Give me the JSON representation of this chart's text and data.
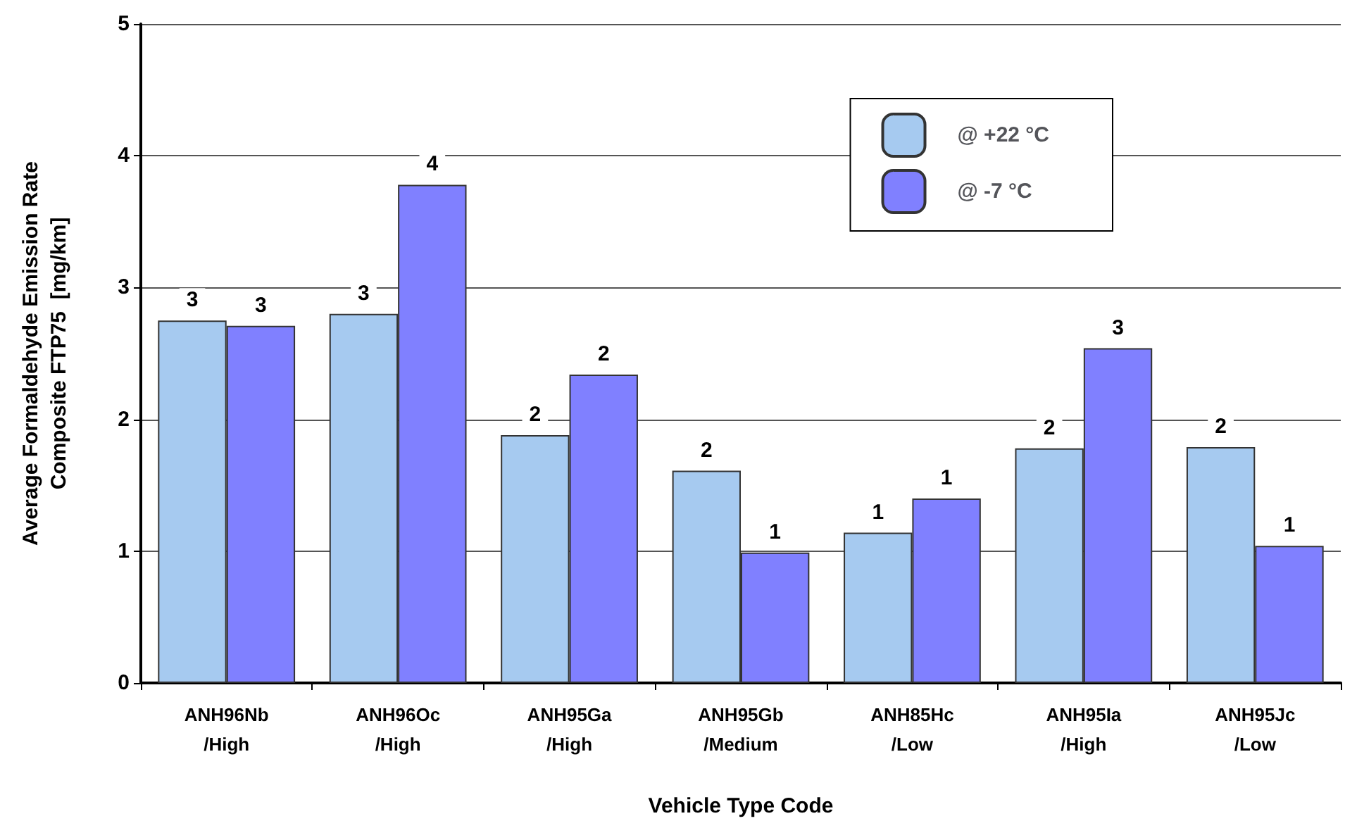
{
  "chart_data": {
    "type": "bar",
    "xlabel": "Vehicle Type Code",
    "ylabel": "Average Formaldehyde Emission Rate\nComposite FTP75  [mg/km]",
    "categories": [
      "ANH96Nb\n/High",
      "ANH96Oc\n/High",
      "ANH95Ga\n/High",
      "ANH95Gb\n/Medium",
      "ANH85Hc\n/Low",
      "ANH95Ia\n/High",
      "ANH95Jc\n/Low"
    ],
    "series": [
      {
        "name": "@ +22 °C",
        "color": "#a6caf0",
        "values": [
          2.75,
          2.8,
          1.88,
          1.61,
          1.14,
          1.78,
          1.79
        ],
        "value_labels": [
          "3",
          "3",
          "2",
          "2",
          "1",
          "2",
          "2"
        ]
      },
      {
        "name": "@ -7 °C",
        "color": "#8080ff",
        "values": [
          2.71,
          3.78,
          2.34,
          0.99,
          1.4,
          2.54,
          1.04
        ],
        "value_labels": [
          "3",
          "4",
          "2",
          "1",
          "1",
          "3",
          "1"
        ]
      }
    ],
    "ylim": [
      0,
      5
    ],
    "yticks": [
      0,
      1,
      2,
      3,
      4,
      5
    ],
    "grid": "y",
    "legend": "top right"
  }
}
